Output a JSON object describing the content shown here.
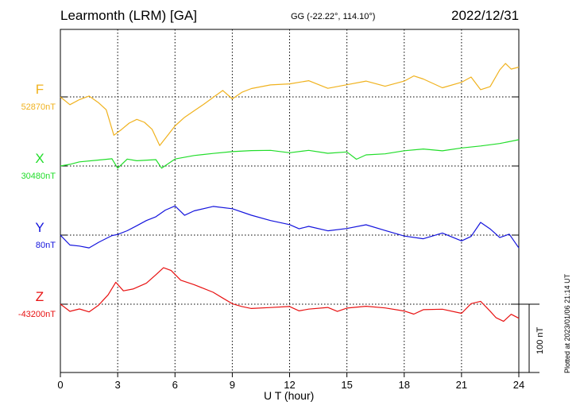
{
  "header": {
    "title": "Learmonth (LRM)  [GA]",
    "coords": "GG (-22.22°, 114.10°)",
    "date": "2022/12/31"
  },
  "footer": {
    "plotted": "Plotted at 2023/01/06 21:14 UT",
    "scale_label": "100 nT"
  },
  "chart_data": {
    "type": "line",
    "xlabel": "U T (hour)",
    "xlim": [
      0,
      24
    ],
    "xticks": [
      0,
      3,
      6,
      9,
      12,
      15,
      18,
      21,
      24
    ],
    "grid": true,
    "scale_bar_nT": 100,
    "series": [
      {
        "name": "F",
        "baseline_label": "52870nT",
        "baseline": 52870,
        "color": "#f0b21e",
        "x": [
          0,
          0.5,
          1,
          1.5,
          2,
          2.4,
          2.8,
          3.2,
          3.6,
          4,
          4.4,
          4.8,
          5.2,
          5.6,
          6,
          6.5,
          7,
          7.5,
          8,
          8.5,
          9,
          9.5,
          10,
          11,
          12,
          13,
          14,
          15,
          16,
          17,
          18,
          18.5,
          19,
          20,
          21,
          21.5,
          22,
          22.5,
          23,
          23.3,
          23.6,
          24
        ],
        "values": [
          52870,
          52858,
          52865,
          52870,
          52860,
          52850,
          52813,
          52822,
          52832,
          52838,
          52834,
          52824,
          52800,
          52814,
          52828,
          52840,
          52849,
          52858,
          52868,
          52878,
          52866,
          52876,
          52882,
          52888,
          52890,
          52895,
          52884,
          52889,
          52894,
          52886,
          52893,
          52900,
          52895,
          52882,
          52890,
          52898,
          52880,
          52885,
          52910,
          52920,
          52912,
          52915
        ]
      },
      {
        "name": "X",
        "baseline_label": "30480nT",
        "baseline": 30480,
        "color": "#21dd2a",
        "x": [
          0,
          0.5,
          1,
          2,
          2.7,
          3,
          3.5,
          4,
          5,
          5.3,
          6,
          7,
          8,
          9,
          10,
          11,
          12,
          13,
          14,
          15,
          15.5,
          16,
          17,
          18,
          19,
          20,
          21,
          22,
          23,
          24
        ],
        "values": [
          30480,
          30483,
          30487,
          30490,
          30492,
          30478,
          30491,
          30488,
          30489,
          30476,
          30489,
          30494,
          30497,
          30500,
          30502,
          30503,
          30500,
          30504,
          30500,
          30502,
          30491,
          30497,
          30498,
          30502,
          30504,
          30501,
          30505,
          30508,
          30512,
          30518
        ]
      },
      {
        "name": "Y",
        "baseline_label": "80nT",
        "baseline": 80,
        "color": "#1414dd",
        "x": [
          0,
          0.5,
          1,
          1.5,
          2,
          2.7,
          3,
          3.5,
          4,
          4.5,
          5,
          5.5,
          6,
          6.5,
          7,
          8,
          9,
          10,
          11,
          12,
          12.5,
          13,
          14,
          15,
          16,
          17,
          18,
          19,
          20,
          21,
          21.5,
          22,
          22.5,
          23,
          23.5,
          24
        ],
        "values": [
          80,
          65,
          63,
          60,
          68,
          78,
          80,
          86,
          94,
          102,
          108,
          118,
          124,
          110,
          116,
          122,
          118,
          108,
          100,
          94,
          88,
          92,
          86,
          90,
          96,
          88,
          80,
          76,
          84,
          72,
          78,
          98,
          88,
          75,
          80,
          60
        ]
      },
      {
        "name": "Z",
        "baseline_label": "-43200nT",
        "baseline": -43200,
        "color": "#e81212",
        "x": [
          0,
          0.5,
          1,
          1.5,
          2,
          2.5,
          2.9,
          3.3,
          3.8,
          4.5,
          5,
          5.4,
          5.8,
          6.3,
          7,
          7.5,
          8,
          8.5,
          9,
          9.5,
          10,
          11,
          12,
          12.5,
          13,
          14,
          14.5,
          15,
          16,
          17,
          18,
          18.5,
          19,
          20,
          21,
          21.5,
          22,
          22.5,
          22.8,
          23.2,
          23.6,
          24
        ],
        "values": [
          -43200,
          -43210,
          -43206,
          -43210,
          -43200,
          -43185,
          -43167,
          -43180,
          -43178,
          -43170,
          -43158,
          -43148,
          -43152,
          -43166,
          -43172,
          -43177,
          -43182,
          -43190,
          -43198,
          -43202,
          -43205,
          -43204,
          -43203,
          -43210,
          -43208,
          -43206,
          -43212,
          -43207,
          -43204,
          -43206,
          -43210,
          -43214,
          -43207,
          -43206,
          -43212,
          -43198,
          -43195,
          -43210,
          -43220,
          -43226,
          -43216,
          -43222
        ]
      }
    ]
  }
}
